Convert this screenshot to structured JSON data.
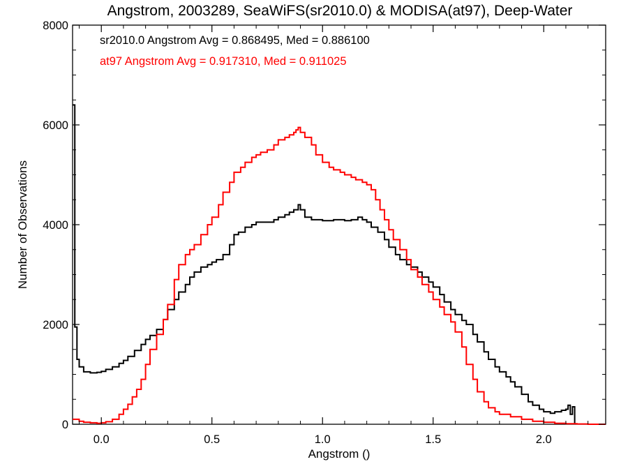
{
  "chart_data": {
    "type": "line",
    "title": "Angstrom, 2003289, SeaWiFS(sr2010.0) & MODISA(at97), Deep-Water",
    "xlabel": "Angstrom ()",
    "ylabel": "Number of Observations",
    "xlim": [
      -0.13,
      2.28
    ],
    "ylim": [
      0,
      8000
    ],
    "x_ticks": [
      0.0,
      0.5,
      1.0,
      1.5,
      2.0
    ],
    "x_tick_labels": [
      "0.0",
      "0.5",
      "1.0",
      "1.5",
      "2.0"
    ],
    "y_ticks": [
      0,
      2000,
      4000,
      6000,
      8000
    ],
    "y_tick_labels": [
      "0",
      "2000",
      "4000",
      "6000",
      "8000"
    ],
    "grid": false,
    "annotations": [
      {
        "text": "sr2010.0 Angstrom Avg = 0.868495, Med = 0.886100",
        "color": "#000000"
      },
      {
        "text": "at97 Angstrom Avg = 0.917310, Med = 0.911025",
        "color": "#ff0000"
      }
    ],
    "series": [
      {
        "color": "#000000",
        "points": [
          [
            -0.13,
            6400
          ],
          [
            -0.12,
            1950
          ],
          [
            -0.11,
            1300
          ],
          [
            -0.1,
            1150
          ],
          [
            -0.08,
            1050
          ],
          [
            -0.05,
            1030
          ],
          [
            -0.02,
            1040
          ],
          [
            0.0,
            1060
          ],
          [
            0.02,
            1100
          ],
          [
            0.05,
            1150
          ],
          [
            0.08,
            1220
          ],
          [
            0.1,
            1280
          ],
          [
            0.12,
            1360
          ],
          [
            0.15,
            1480
          ],
          [
            0.18,
            1600
          ],
          [
            0.2,
            1700
          ],
          [
            0.22,
            1780
          ],
          [
            0.25,
            1900
          ],
          [
            0.28,
            2100
          ],
          [
            0.3,
            2300
          ],
          [
            0.33,
            2500
          ],
          [
            0.35,
            2650
          ],
          [
            0.38,
            2800
          ],
          [
            0.4,
            2950
          ],
          [
            0.42,
            3050
          ],
          [
            0.45,
            3150
          ],
          [
            0.48,
            3200
          ],
          [
            0.5,
            3250
          ],
          [
            0.52,
            3300
          ],
          [
            0.55,
            3400
          ],
          [
            0.58,
            3600
          ],
          [
            0.6,
            3800
          ],
          [
            0.62,
            3850
          ],
          [
            0.65,
            3950
          ],
          [
            0.68,
            4000
          ],
          [
            0.7,
            4050
          ],
          [
            0.72,
            4050
          ],
          [
            0.75,
            4050
          ],
          [
            0.78,
            4100
          ],
          [
            0.8,
            4150
          ],
          [
            0.83,
            4200
          ],
          [
            0.85,
            4250
          ],
          [
            0.87,
            4300
          ],
          [
            0.89,
            4400
          ],
          [
            0.9,
            4300
          ],
          [
            0.92,
            4150
          ],
          [
            0.95,
            4100
          ],
          [
            0.98,
            4100
          ],
          [
            1.0,
            4080
          ],
          [
            1.03,
            4080
          ],
          [
            1.05,
            4100
          ],
          [
            1.08,
            4100
          ],
          [
            1.1,
            4080
          ],
          [
            1.13,
            4100
          ],
          [
            1.16,
            4150
          ],
          [
            1.18,
            4100
          ],
          [
            1.2,
            4050
          ],
          [
            1.22,
            3950
          ],
          [
            1.25,
            3850
          ],
          [
            1.28,
            3700
          ],
          [
            1.3,
            3550
          ],
          [
            1.33,
            3400
          ],
          [
            1.35,
            3300
          ],
          [
            1.38,
            3200
          ],
          [
            1.4,
            3150
          ],
          [
            1.43,
            3050
          ],
          [
            1.45,
            2950
          ],
          [
            1.48,
            2850
          ],
          [
            1.5,
            2750
          ],
          [
            1.53,
            2600
          ],
          [
            1.55,
            2450
          ],
          [
            1.58,
            2300
          ],
          [
            1.6,
            2200
          ],
          [
            1.63,
            2080
          ],
          [
            1.65,
            2000
          ],
          [
            1.68,
            1800
          ],
          [
            1.7,
            1650
          ],
          [
            1.73,
            1450
          ],
          [
            1.75,
            1300
          ],
          [
            1.78,
            1150
          ],
          [
            1.8,
            1050
          ],
          [
            1.83,
            950
          ],
          [
            1.85,
            850
          ],
          [
            1.87,
            750
          ],
          [
            1.9,
            600
          ],
          [
            1.93,
            450
          ],
          [
            1.95,
            380
          ],
          [
            1.98,
            300
          ],
          [
            2.0,
            250
          ],
          [
            2.03,
            220
          ],
          [
            2.05,
            250
          ],
          [
            2.08,
            280
          ],
          [
            2.1,
            300
          ],
          [
            2.11,
            380
          ],
          [
            2.12,
            200
          ],
          [
            2.13,
            350
          ],
          [
            2.14,
            20
          ]
        ]
      },
      {
        "color": "#ff0000",
        "points": [
          [
            -0.13,
            100
          ],
          [
            -0.1,
            60
          ],
          [
            -0.08,
            40
          ],
          [
            -0.05,
            30
          ],
          [
            -0.02,
            20
          ],
          [
            0.0,
            30
          ],
          [
            0.02,
            50
          ],
          [
            0.05,
            100
          ],
          [
            0.08,
            200
          ],
          [
            0.1,
            300
          ],
          [
            0.12,
            400
          ],
          [
            0.14,
            550
          ],
          [
            0.16,
            700
          ],
          [
            0.18,
            900
          ],
          [
            0.2,
            1200
          ],
          [
            0.22,
            1500
          ],
          [
            0.25,
            1800
          ],
          [
            0.28,
            2100
          ],
          [
            0.3,
            2400
          ],
          [
            0.33,
            2900
          ],
          [
            0.35,
            3200
          ],
          [
            0.38,
            3400
          ],
          [
            0.4,
            3500
          ],
          [
            0.42,
            3600
          ],
          [
            0.45,
            3800
          ],
          [
            0.48,
            4000
          ],
          [
            0.5,
            4150
          ],
          [
            0.53,
            4400
          ],
          [
            0.55,
            4650
          ],
          [
            0.58,
            4850
          ],
          [
            0.6,
            5050
          ],
          [
            0.63,
            5150
          ],
          [
            0.65,
            5250
          ],
          [
            0.68,
            5350
          ],
          [
            0.7,
            5400
          ],
          [
            0.72,
            5450
          ],
          [
            0.75,
            5500
          ],
          [
            0.78,
            5600
          ],
          [
            0.8,
            5700
          ],
          [
            0.83,
            5750
          ],
          [
            0.85,
            5800
          ],
          [
            0.87,
            5850
          ],
          [
            0.88,
            5900
          ],
          [
            0.89,
            5950
          ],
          [
            0.9,
            5850
          ],
          [
            0.92,
            5750
          ],
          [
            0.95,
            5600
          ],
          [
            0.97,
            5400
          ],
          [
            1.0,
            5250
          ],
          [
            1.03,
            5150
          ],
          [
            1.05,
            5100
          ],
          [
            1.08,
            5050
          ],
          [
            1.1,
            5000
          ],
          [
            1.13,
            4950
          ],
          [
            1.15,
            4900
          ],
          [
            1.18,
            4850
          ],
          [
            1.2,
            4800
          ],
          [
            1.22,
            4700
          ],
          [
            1.24,
            4500
          ],
          [
            1.26,
            4300
          ],
          [
            1.28,
            4100
          ],
          [
            1.3,
            3900
          ],
          [
            1.32,
            3700
          ],
          [
            1.35,
            3500
          ],
          [
            1.38,
            3300
          ],
          [
            1.4,
            3100
          ],
          [
            1.43,
            2950
          ],
          [
            1.45,
            2800
          ],
          [
            1.48,
            2650
          ],
          [
            1.5,
            2500
          ],
          [
            1.53,
            2350
          ],
          [
            1.55,
            2200
          ],
          [
            1.58,
            2050
          ],
          [
            1.6,
            1850
          ],
          [
            1.63,
            1550
          ],
          [
            1.65,
            1200
          ],
          [
            1.68,
            900
          ],
          [
            1.7,
            650
          ],
          [
            1.73,
            450
          ],
          [
            1.75,
            330
          ],
          [
            1.78,
            250
          ],
          [
            1.8,
            200
          ],
          [
            1.85,
            150
          ],
          [
            1.9,
            100
          ],
          [
            1.95,
            60
          ],
          [
            2.0,
            40
          ],
          [
            2.05,
            20
          ],
          [
            2.1,
            10
          ],
          [
            2.15,
            5
          ],
          [
            2.2,
            0
          ],
          [
            2.28,
            0
          ]
        ]
      }
    ]
  }
}
